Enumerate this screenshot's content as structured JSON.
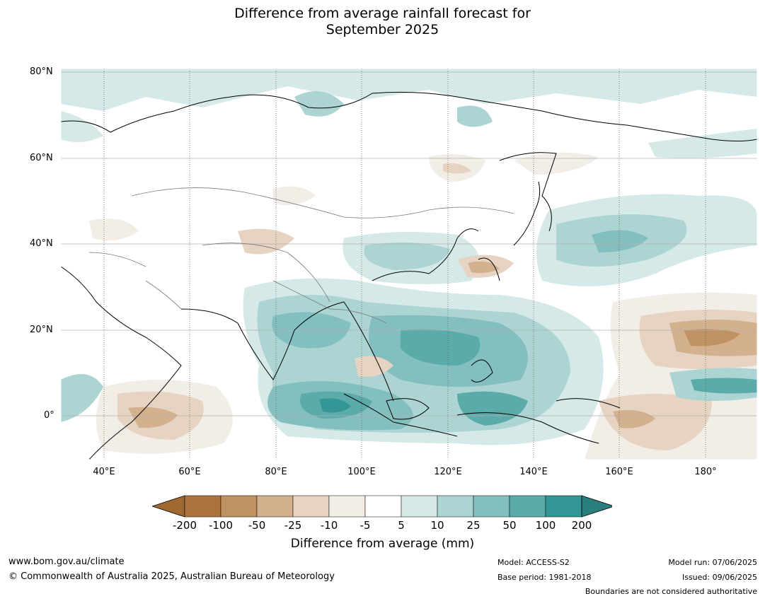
{
  "title": {
    "line1": "Difference from average rainfall forecast for",
    "line2": "September 2025"
  },
  "map": {
    "lat_labels": [
      "80°N",
      "60°N",
      "40°N",
      "20°N",
      "0°"
    ],
    "lon_labels": [
      "40°E",
      "60°E",
      "80°E",
      "100°E",
      "120°E",
      "140°E",
      "160°E",
      "180°"
    ]
  },
  "colorbar": {
    "labels": [
      "-200",
      "-100",
      "-50",
      "-25",
      "-10",
      "-5",
      "5",
      "10",
      "25",
      "50",
      "100",
      "200"
    ],
    "colors": [
      "#a0692f",
      "#ac733e",
      "#c09263",
      "#d3b18e",
      "#e6d3c1",
      "#f2ede7",
      "#ffffff",
      "#d5e9e8",
      "#acd4d3",
      "#82bfbe",
      "#5babaa",
      "#349796",
      "#2a7e7d"
    ],
    "title": "Difference from average (mm)"
  },
  "footer": {
    "url": "www.bom.gov.au/climate",
    "copyright": "© Commonwealth of Australia 2025, Australian Bureau of Meteorology",
    "model": "Model: ACCESS-S2",
    "base_period": "Base period: 1981-2018",
    "model_run": "Model run: 07/06/2025",
    "issued": "Issued: 09/06/2025",
    "disclaimer": "Boundaries are not considered authoritative"
  }
}
